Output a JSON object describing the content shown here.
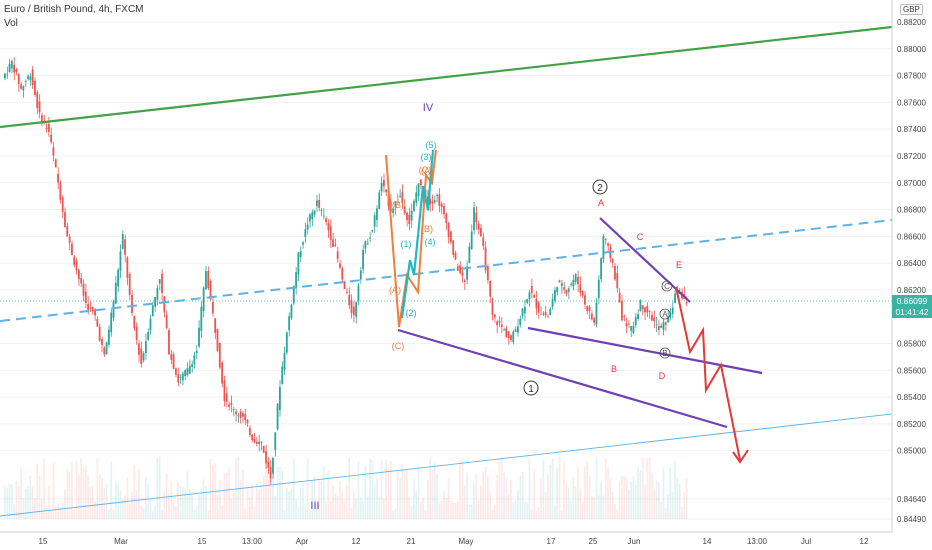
{
  "chart_data": {
    "type": "candlestick",
    "title": "Euro / British Pound, 4h, FXCM",
    "volume_label": "Vol",
    "currency": "GBP",
    "y_ticks": [
      "0.88200",
      "0.88000",
      "0.87800",
      "0.87600",
      "0.87400",
      "0.87200",
      "0.87000",
      "0.86800",
      "0.86600",
      "0.86400",
      "0.86200",
      "0.85800",
      "0.85600",
      "0.85400",
      "0.85200",
      "0.85000",
      "0.84640",
      "0.84490"
    ],
    "x_ticks": [
      "15",
      "Mar",
      "15",
      "13:00",
      "Apr",
      "12",
      "21",
      "May",
      "17",
      "25",
      "Jun",
      "14",
      "13:00",
      "Jul",
      "12"
    ],
    "current_price": "0.86099",
    "countdown": "01:41:42",
    "ylim": [
      0.8445,
      0.8827
    ],
    "closes": [
      0.8778,
      0.879,
      0.877,
      0.8782,
      0.875,
      0.8738,
      0.87,
      0.866,
      0.8635,
      0.861,
      0.86,
      0.857,
      0.8612,
      0.866,
      0.86,
      0.8565,
      0.86,
      0.863,
      0.8575,
      0.8552,
      0.856,
      0.8575,
      0.8635,
      0.859,
      0.854,
      0.853,
      0.8525,
      0.851,
      0.8505,
      0.848,
      0.855,
      0.86,
      0.8645,
      0.867,
      0.8685,
      0.867,
      0.865,
      0.862,
      0.86,
      0.865,
      0.8665,
      0.87,
      0.868,
      0.869,
      0.867,
      0.87,
      0.8685,
      0.869,
      0.867,
      0.864,
      0.8625,
      0.868,
      0.865,
      0.86,
      0.8592,
      0.8582,
      0.86,
      0.862,
      0.8605,
      0.86,
      0.8625,
      0.862,
      0.863,
      0.861,
      0.8595,
      0.866,
      0.864,
      0.86,
      0.859,
      0.861,
      0.8602,
      0.859,
      0.8598,
      0.862,
      0.861
    ],
    "wave_labels": [
      "IV",
      "III",
      "(5)",
      "(3)",
      "(C)",
      "(B)",
      "(A)",
      "(1)",
      "(2)",
      "(4)",
      "(B)",
      "(A)",
      "(C)",
      "A",
      "B",
      "C",
      "D",
      "E",
      "2",
      "1",
      "A",
      "B",
      "C"
    ]
  }
}
